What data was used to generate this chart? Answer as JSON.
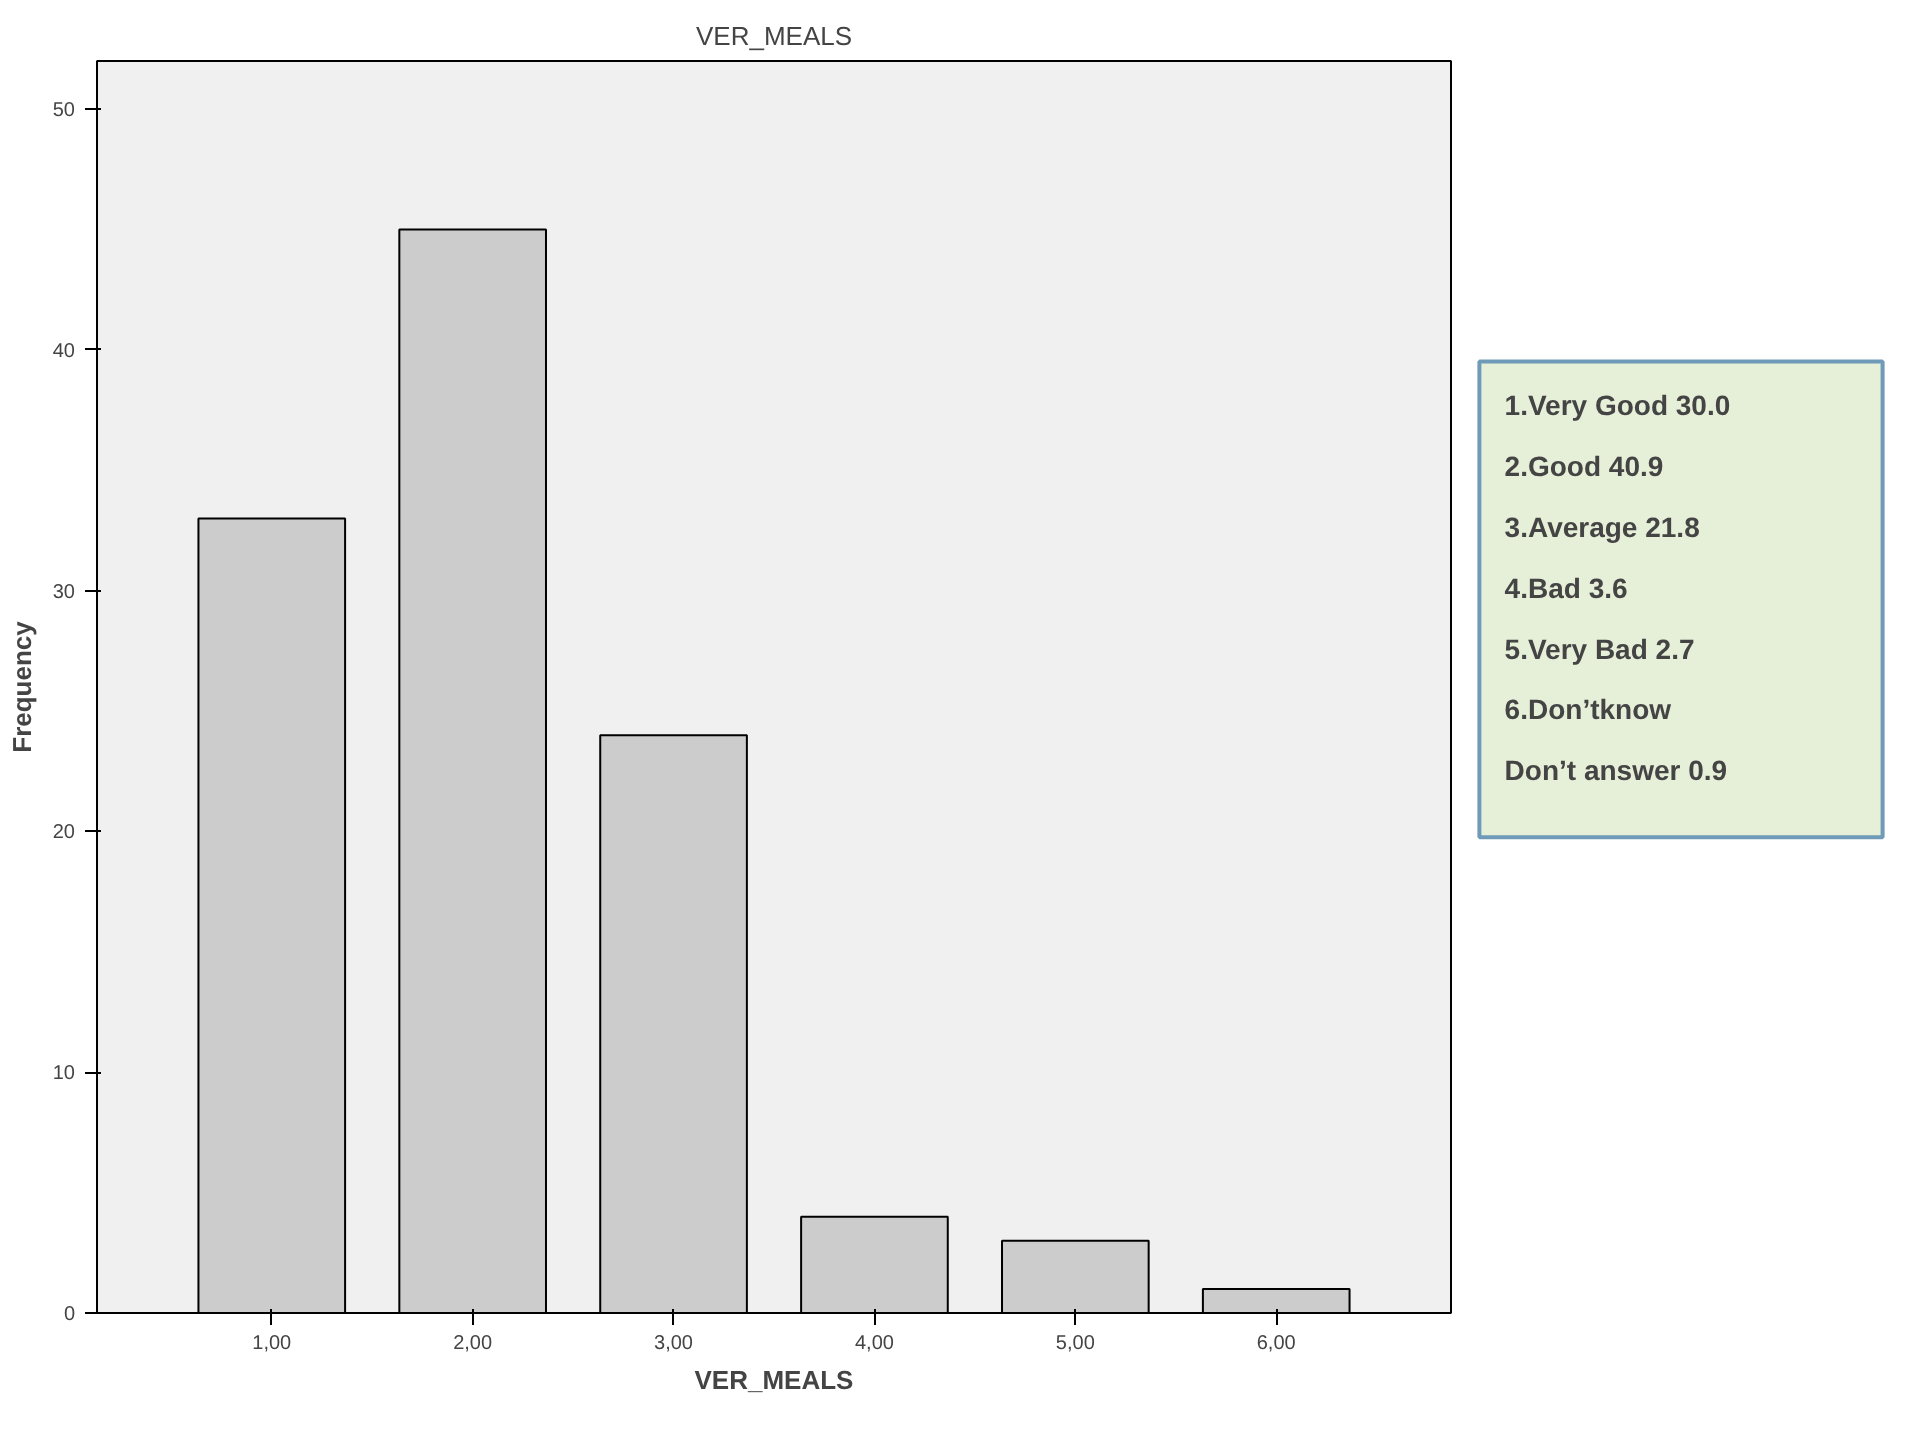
{
  "chart_data": {
    "type": "bar",
    "title": "VER_MEALS",
    "xlabel": "VER_MEALS",
    "ylabel": "Frequency",
    "categories": [
      "1,00",
      "2,00",
      "3,00",
      "4,00",
      "5,00",
      "6,00"
    ],
    "values": [
      33,
      45,
      24,
      4,
      3,
      1
    ],
    "color": "#cccccc",
    "ylim": [
      0,
      52
    ],
    "yticks": [
      0,
      10,
      20,
      30,
      40,
      50
    ],
    "grid": false,
    "annotations": [
      "1.Very Good   30.0",
      "2.Good   40.9",
      "3.Average   21.8",
      "4.Bad   3.6",
      "5.Very Bad   2.7",
      "6.Don’tknow",
      "Don’t answer  0.9"
    ]
  }
}
